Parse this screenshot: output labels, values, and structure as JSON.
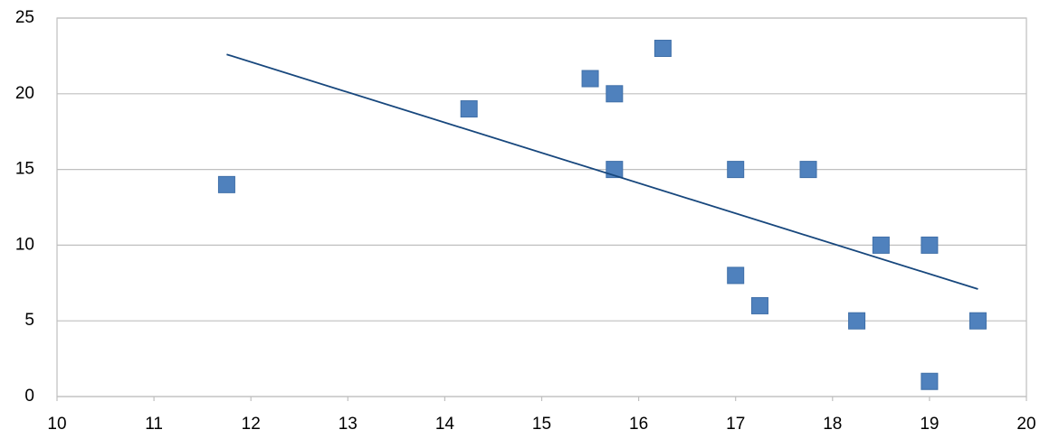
{
  "chart_data": {
    "type": "scatter",
    "x": [
      11.75,
      14.25,
      15.5,
      15.75,
      15.75,
      16.25,
      17,
      17,
      17.25,
      17.75,
      18.25,
      18.5,
      19,
      19,
      19.5
    ],
    "values": [
      14,
      19,
      21,
      20,
      15,
      23,
      15,
      8,
      6,
      15,
      5,
      10,
      10,
      1,
      5
    ],
    "color": "#4f81bd",
    "trendline": {
      "x": [
        11.75,
        19.5
      ],
      "y": [
        22.6,
        7.1
      ],
      "color": "#17477d"
    },
    "xlim": [
      10,
      20
    ],
    "xticks": [
      10,
      11,
      12,
      13,
      14,
      15,
      16,
      17,
      18,
      19,
      20
    ],
    "ylim": [
      0,
      25
    ],
    "yticks": [
      0,
      5,
      10,
      15,
      20,
      25
    ],
    "grid": true
  }
}
